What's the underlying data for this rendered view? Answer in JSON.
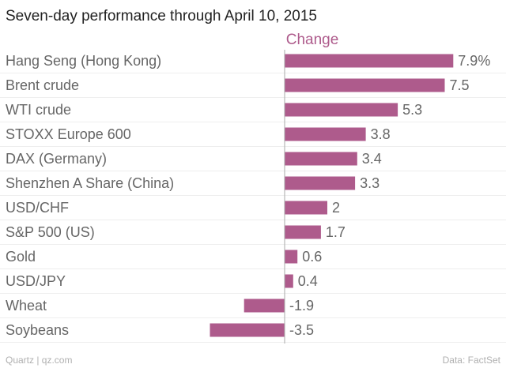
{
  "chart_data": {
    "type": "bar",
    "orientation": "horizontal",
    "title": "Seven-day performance through April 10, 2015",
    "series_name": "Change",
    "categories": [
      "Hang Seng (Hong Kong)",
      "Brent crude",
      "WTI crude",
      "STOXX Europe 600",
      "DAX (Germany)",
      "Shenzhen A Share (China)",
      "USD/CHF",
      "S&P 500 (US)",
      "Gold",
      "USD/JPY",
      "Wheat",
      "Soybeans"
    ],
    "values": [
      7.9,
      7.5,
      5.3,
      3.8,
      3.4,
      3.3,
      2,
      1.7,
      0.6,
      0.4,
      -1.9,
      -3.5
    ],
    "value_labels": [
      "7.9%",
      "7.5",
      "5.3",
      "3.8",
      "3.4",
      "3.3",
      "2",
      "1.7",
      "0.6",
      "0.4",
      "-1.9",
      "-3.5"
    ],
    "xlim": [
      -3.5,
      7.9
    ],
    "grid": true,
    "legend": "none"
  },
  "footer": {
    "source_left": "Quartz | qz.com",
    "source_right": "Data: FactSet"
  },
  "colors": {
    "bar": "#AE5B8C",
    "series_header": "#AE5B8C",
    "title": "#222222",
    "label": "#666666",
    "footer": "#B0B0B0"
  }
}
